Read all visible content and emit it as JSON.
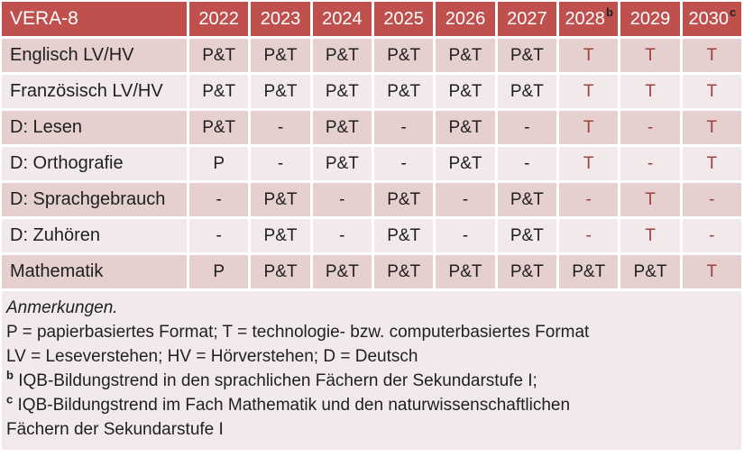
{
  "colors": {
    "header_bg": "#bf504e",
    "band_dark": "#e5cfcf",
    "band_light": "#f2eaea",
    "accent_text": "#9e4140",
    "text": "#1f1f1f",
    "header_text": "#ffffff"
  },
  "table": {
    "corner_label": "VERA-8",
    "year_headers": [
      {
        "text": "2022",
        "sup": ""
      },
      {
        "text": "2023",
        "sup": ""
      },
      {
        "text": "2024",
        "sup": ""
      },
      {
        "text": "2025",
        "sup": ""
      },
      {
        "text": "2026",
        "sup": ""
      },
      {
        "text": "2027",
        "sup": ""
      },
      {
        "text": "2028",
        "sup": "b"
      },
      {
        "text": "2029",
        "sup": ""
      },
      {
        "text": "2030",
        "sup": "c"
      }
    ],
    "rows": [
      {
        "label": "Englisch LV/HV",
        "band": "dark",
        "cells": [
          {
            "t": "P&T",
            "red": false
          },
          {
            "t": "P&T",
            "red": false
          },
          {
            "t": "P&T",
            "red": false
          },
          {
            "t": "P&T",
            "red": false
          },
          {
            "t": "P&T",
            "red": false
          },
          {
            "t": "P&T",
            "red": false
          },
          {
            "t": "T",
            "red": true
          },
          {
            "t": "T",
            "red": true
          },
          {
            "t": "T",
            "red": true
          }
        ]
      },
      {
        "label": "Französisch LV/HV",
        "band": "light",
        "cells": [
          {
            "t": "P&T",
            "red": false
          },
          {
            "t": "P&T",
            "red": false
          },
          {
            "t": "P&T",
            "red": false
          },
          {
            "t": "P&T",
            "red": false
          },
          {
            "t": "P&T",
            "red": false
          },
          {
            "t": "P&T",
            "red": false
          },
          {
            "t": "T",
            "red": true
          },
          {
            "t": "T",
            "red": true
          },
          {
            "t": "T",
            "red": true
          }
        ]
      },
      {
        "label": "D: Lesen",
        "band": "dark",
        "cells": [
          {
            "t": "P&T",
            "red": false
          },
          {
            "t": "-",
            "red": false
          },
          {
            "t": "P&T",
            "red": false
          },
          {
            "t": "-",
            "red": false
          },
          {
            "t": "P&T",
            "red": false
          },
          {
            "t": "-",
            "red": false
          },
          {
            "t": "T",
            "red": true
          },
          {
            "t": "-",
            "red": true
          },
          {
            "t": "T",
            "red": true
          }
        ]
      },
      {
        "label": "D: Orthografie",
        "band": "light",
        "cells": [
          {
            "t": "P",
            "red": false
          },
          {
            "t": "-",
            "red": false
          },
          {
            "t": "P&T",
            "red": false
          },
          {
            "t": "-",
            "red": false
          },
          {
            "t": "P&T",
            "red": false
          },
          {
            "t": "-",
            "red": false
          },
          {
            "t": "T",
            "red": true
          },
          {
            "t": "-",
            "red": true
          },
          {
            "t": "T",
            "red": true
          }
        ]
      },
      {
        "label": "D: Sprachgebrauch",
        "band": "dark",
        "cells": [
          {
            "t": "-",
            "red": false
          },
          {
            "t": "P&T",
            "red": false
          },
          {
            "t": "-",
            "red": false
          },
          {
            "t": "P&T",
            "red": false
          },
          {
            "t": "-",
            "red": false
          },
          {
            "t": "P&T",
            "red": false
          },
          {
            "t": "-",
            "red": true
          },
          {
            "t": "T",
            "red": true
          },
          {
            "t": "-",
            "red": true
          }
        ]
      },
      {
        "label": "D: Zuhören",
        "band": "light",
        "cells": [
          {
            "t": "-",
            "red": false
          },
          {
            "t": "P&T",
            "red": false
          },
          {
            "t": "-",
            "red": false
          },
          {
            "t": "P&T",
            "red": false
          },
          {
            "t": "-",
            "red": false
          },
          {
            "t": "P&T",
            "red": false
          },
          {
            "t": "-",
            "red": true
          },
          {
            "t": "T",
            "red": true
          },
          {
            "t": "-",
            "red": true
          }
        ]
      },
      {
        "label": "Mathematik",
        "band": "dark",
        "cells": [
          {
            "t": "P",
            "red": false
          },
          {
            "t": "P&T",
            "red": false
          },
          {
            "t": "P&T",
            "red": false
          },
          {
            "t": "P&T",
            "red": false
          },
          {
            "t": "P&T",
            "red": false
          },
          {
            "t": "P&T",
            "red": false
          },
          {
            "t": "P&T",
            "red": false
          },
          {
            "t": "P&T",
            "red": false
          },
          {
            "t": "T",
            "red": true
          }
        ]
      }
    ]
  },
  "notes": {
    "lines": [
      {
        "sup": "",
        "text": "Anmerkungen.",
        "italic": true
      },
      {
        "sup": "",
        "text": "P = papierbasiertes Format; T = technologie- bzw. computerbasiertes Format",
        "italic": false
      },
      {
        "sup": "",
        "text": "LV = Leseverstehen; HV = Hörverstehen; D = Deutsch",
        "italic": false
      },
      {
        "sup": "b",
        "text": "IQB-Bildungstrend in den sprachlichen Fächern der Sekundarstufe I;",
        "italic": false
      },
      {
        "sup": "c",
        "text": "IQB-Bildungstrend im Fach Mathematik und den naturwissenschaftlichen",
        "italic": false
      },
      {
        "sup": "",
        "text": "Fächern der Sekundarstufe I",
        "italic": false
      }
    ]
  }
}
